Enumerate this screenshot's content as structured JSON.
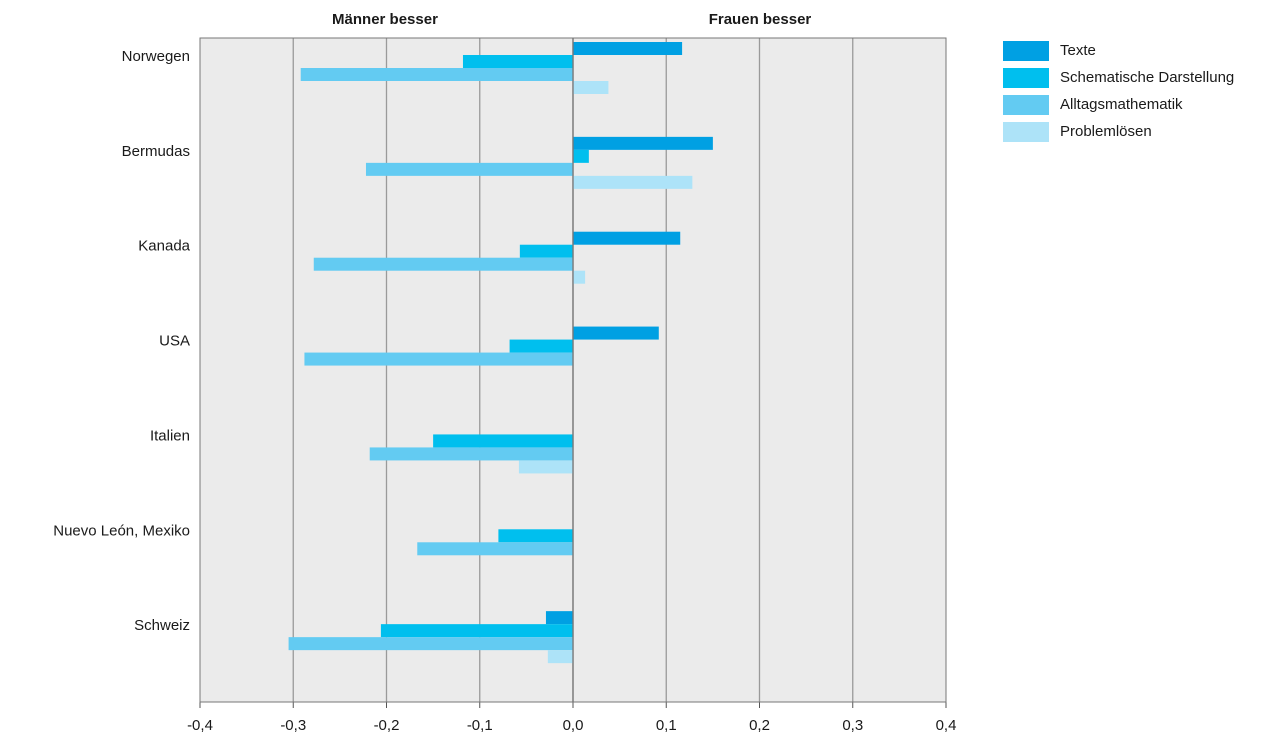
{
  "chart_data": {
    "type": "bar",
    "orientation": "horizontal",
    "side_labels": {
      "left": "Männer besser",
      "right": "Frauen besser"
    },
    "categories": [
      "Norwegen",
      "Bermudas",
      "Kanada",
      "USA",
      "Italien",
      "Nuevo León, Mexiko",
      "Schweiz"
    ],
    "series": [
      {
        "name": "Texte",
        "color": "#00a0e3",
        "values": [
          0.117,
          0.15,
          0.115,
          0.092,
          null,
          null,
          -0.029
        ]
      },
      {
        "name": "Schematische Darstellung",
        "color": "#00bfee",
        "values": [
          -0.118,
          0.017,
          -0.057,
          -0.068,
          -0.15,
          -0.08,
          -0.206
        ]
      },
      {
        "name": "Alltagsmathematik",
        "color": "#63cbf2",
        "values": [
          -0.292,
          -0.222,
          -0.278,
          -0.288,
          -0.218,
          -0.167,
          -0.305
        ]
      },
      {
        "name": "Problemlösen",
        "color": "#ade3f8",
        "values": [
          0.038,
          0.128,
          0.013,
          null,
          -0.058,
          null,
          -0.027
        ]
      }
    ],
    "xlim": [
      -0.4,
      0.4
    ],
    "xticks": [
      "-0,4",
      "-0,3",
      "-0,2",
      "-0,1",
      "0,0",
      "0,1",
      "0,2",
      "0,3",
      "0,4"
    ],
    "grid": true,
    "legend_position": "top-right",
    "plot_background": "#ebebeb"
  }
}
